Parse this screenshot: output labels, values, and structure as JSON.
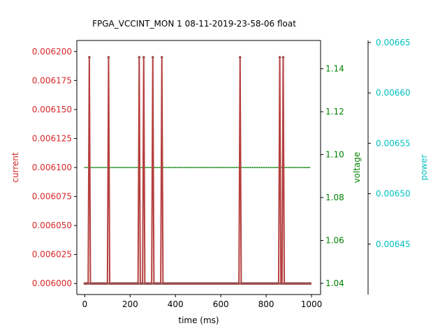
{
  "chart_data": {
    "type": "line",
    "title": "FPGA_VCCINT_MON   1   08-11-2019-23-58-06   float",
    "xlabel": "time (ms)",
    "xlim": [
      -35,
      1040
    ],
    "xticks": [
      0,
      200,
      400,
      600,
      800,
      1000
    ],
    "grid": false,
    "sample_interval_ms": 5,
    "sample_count": 200,
    "current": {
      "name": "current",
      "axis_label": "current",
      "color": "#d62728",
      "line_color": "#b5403f",
      "ylim": [
        0.0059905,
        0.0062095
      ],
      "yticks": [
        "0.006000",
        "0.006025",
        "0.006050",
        "0.006075",
        "0.006100",
        "0.006125",
        "0.006150",
        "0.006175",
        "0.006200"
      ],
      "baseline": 0.006,
      "spike_value": 0.006195,
      "spike_times_ms": [
        20,
        105,
        240,
        260,
        300,
        340,
        685,
        860,
        875
      ]
    },
    "voltage": {
      "name": "voltage",
      "axis_label": "voltage",
      "color": "#008000",
      "ylim": [
        1.0348,
        1.1532
      ],
      "yticks": [
        "1.04",
        "1.06",
        "1.08",
        "1.10",
        "1.12",
        "1.14"
      ],
      "value": 1.094
    },
    "power": {
      "name": "power",
      "axis_label": "power",
      "color": "#00bfbf",
      "ylim": [
        0.0064,
        0.006652
      ],
      "yticks": [
        "0.00645",
        "0.00650",
        "0.00655",
        "0.00660",
        "0.00665"
      ]
    }
  }
}
